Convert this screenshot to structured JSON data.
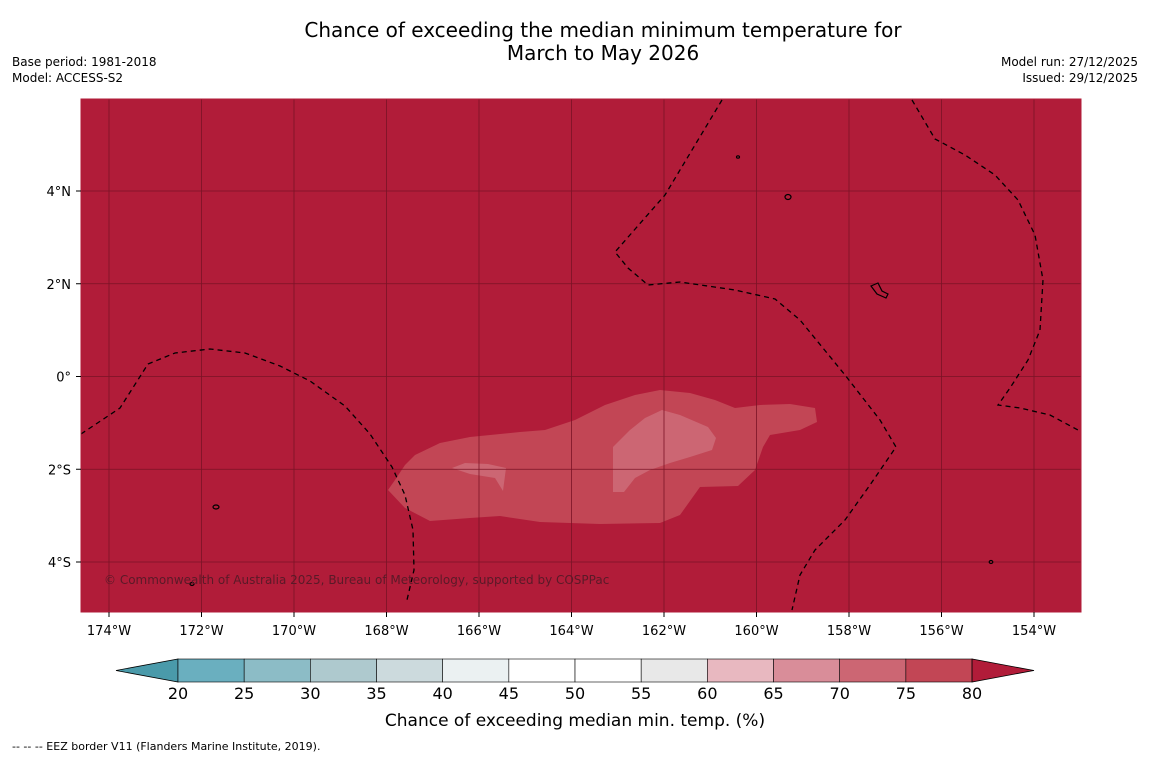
{
  "title_line1": "Chance of exceeding the median minimum temperature for",
  "title_line2": "March to May 2026",
  "base_period": "Base period: 1981-2018",
  "model": "Model: ACCESS-S2",
  "model_run": "Model run: 27/12/2025",
  "issued": "Issued: 29/12/2025",
  "copyright": "© Commonwealth of Australia 2025, Bureau of Meteorology, supported by COSPPac",
  "footnote": "-- -- -- EEZ border V11 (Flanders Marine Institute, 2019).",
  "colorbar": {
    "title": "Chance of exceeding median min. temp. (%)",
    "ticks": [
      "20",
      "25",
      "30",
      "35",
      "40",
      "45",
      "50",
      "55",
      "60",
      "65",
      "70",
      "75",
      "80"
    ],
    "colors": [
      "#4a9aaa",
      "#6aafbf",
      "#8cbcc6",
      "#aec9ce",
      "#ccdadd",
      "#ebf1f2",
      "#ffffff",
      "#ffffff",
      "#e8e8e8",
      "#e8b8c0",
      "#d98d99",
      "#cc6673",
      "#c24655",
      "#b11c39"
    ]
  },
  "map": {
    "x_labels": [
      "174°W",
      "172°W",
      "170°W",
      "168°W",
      "166°W",
      "164°W",
      "162°W",
      "160°W",
      "158°W",
      "156°W",
      "154°W"
    ],
    "y_labels": [
      "4°N",
      "2°N",
      "0°",
      "2°S",
      "4°S"
    ],
    "background_color": "#b11c39",
    "region_colors": [
      "#c24655",
      "#cc6673"
    ]
  }
}
